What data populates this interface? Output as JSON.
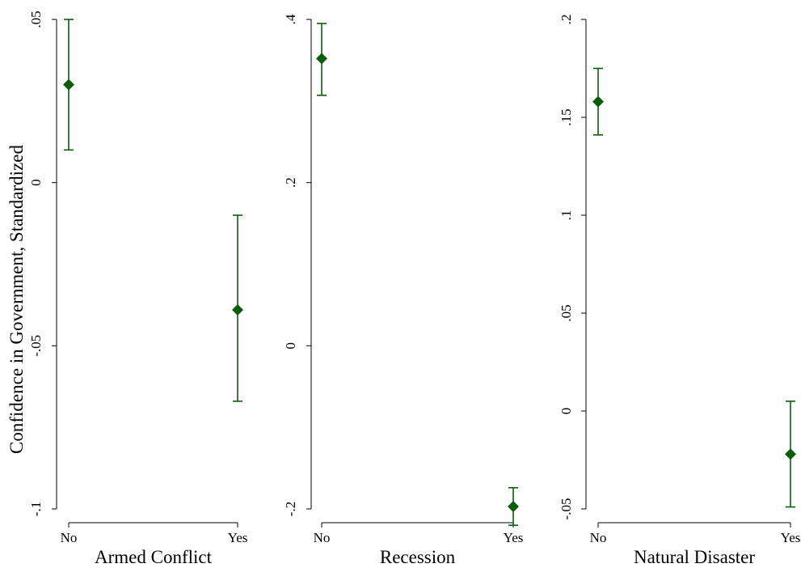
{
  "ylabel": "Confidence in Government, Standardized",
  "colors": {
    "marker": "#0b5d0b",
    "axis": "#000000"
  },
  "chart_data": [
    {
      "type": "scatter",
      "error_bars": true,
      "xlabel": "Armed Conflict",
      "categories": [
        "No",
        "Yes"
      ],
      "ylim": [
        -0.1,
        0.05
      ],
      "yticks": [
        -0.1,
        -0.05,
        0,
        0.05
      ],
      "ytick_labels": [
        "-.1",
        "-.05",
        "0",
        ".05"
      ],
      "points": [
        {
          "x": "No",
          "y": 0.03,
          "lo": 0.01,
          "hi": 0.05
        },
        {
          "x": "Yes",
          "y": -0.039,
          "lo": -0.067,
          "hi": -0.01
        }
      ]
    },
    {
      "type": "scatter",
      "error_bars": true,
      "xlabel": "Recession",
      "categories": [
        "No",
        "Yes"
      ],
      "ylim": [
        -0.2,
        0.4
      ],
      "yticks": [
        -0.2,
        0,
        0.2,
        0.4
      ],
      "ytick_labels": [
        "-.2",
        "0",
        ".2",
        ".4"
      ],
      "points": [
        {
          "x": "No",
          "y": 0.352,
          "lo": 0.307,
          "hi": 0.395
        },
        {
          "x": "Yes",
          "y": -0.197,
          "lo": -0.22,
          "hi": -0.174
        }
      ]
    },
    {
      "type": "scatter",
      "error_bars": true,
      "xlabel": "Natural Disaster",
      "categories": [
        "No",
        "Yes"
      ],
      "ylim": [
        -0.05,
        0.2
      ],
      "yticks": [
        -0.05,
        0,
        0.05,
        0.1,
        0.15,
        0.2
      ],
      "ytick_labels": [
        "-.05",
        "0",
        ".05",
        ".1",
        ".15",
        ".2"
      ],
      "points": [
        {
          "x": "No",
          "y": 0.158,
          "lo": 0.141,
          "hi": 0.175
        },
        {
          "x": "Yes",
          "y": -0.022,
          "lo": -0.049,
          "hi": 0.005
        }
      ]
    }
  ]
}
